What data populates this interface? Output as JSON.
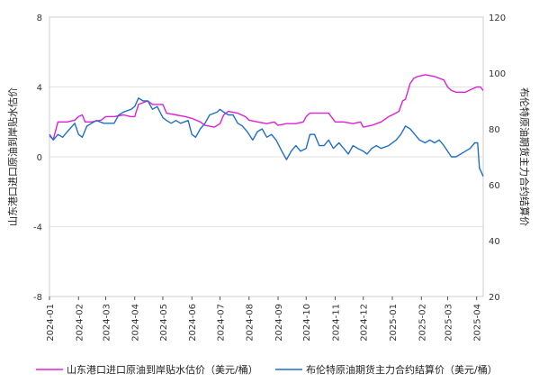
{
  "chart_data": {
    "type": "line",
    "x_labels": [
      "2024-01",
      "2024-02",
      "2024-03",
      "2024-04",
      "2024-05",
      "2024-06",
      "2024-07",
      "2024-08",
      "2024-09",
      "2024-10",
      "2024-11",
      "2024-12",
      "2025-01",
      "2025-02",
      "2025-03",
      "2025-04"
    ],
    "y_left": {
      "label": "山东港口进口原油到岸贴水估价",
      "ticks": [
        8,
        4,
        0,
        -4,
        -8
      ],
      "range": [
        -8,
        8
      ]
    },
    "y_right": {
      "label": "布伦特原油期货主力合约结算价",
      "ticks": [
        120,
        100,
        80,
        60,
        40,
        20
      ],
      "range": [
        20,
        120
      ]
    },
    "grid": "horizontal",
    "legend_position": "bottom",
    "series": [
      {
        "name": "山东港口进口原油到岸贴水估价（美元/桶）",
        "axis": "left",
        "color": "#e020d8",
        "points": [
          [
            "2024-01-01",
            1.2
          ],
          [
            "2024-01-05",
            1.0
          ],
          [
            "2024-01-10",
            2.0
          ],
          [
            "2024-01-20",
            2.0
          ],
          [
            "2024-01-28",
            2.1
          ],
          [
            "2024-02-01",
            2.3
          ],
          [
            "2024-02-05",
            2.4
          ],
          [
            "2024-02-08",
            2.0
          ],
          [
            "2024-02-15",
            2.0
          ],
          [
            "2024-02-25",
            2.1
          ],
          [
            "2024-03-01",
            2.3
          ],
          [
            "2024-03-10",
            2.3
          ],
          [
            "2024-03-20",
            2.4
          ],
          [
            "2024-03-28",
            2.3
          ],
          [
            "2024-04-01",
            2.3
          ],
          [
            "2024-04-05",
            3.0
          ],
          [
            "2024-04-10",
            3.1
          ],
          [
            "2024-04-15",
            3.2
          ],
          [
            "2024-04-20",
            3.0
          ],
          [
            "2024-04-25",
            3.0
          ],
          [
            "2024-05-01",
            3.0
          ],
          [
            "2024-05-05",
            2.5
          ],
          [
            "2024-05-15",
            2.4
          ],
          [
            "2024-05-25",
            2.3
          ],
          [
            "2024-06-01",
            2.2
          ],
          [
            "2024-06-10",
            2.0
          ],
          [
            "2024-06-15",
            1.8
          ],
          [
            "2024-06-25",
            1.7
          ],
          [
            "2024-07-01",
            1.9
          ],
          [
            "2024-07-05",
            2.4
          ],
          [
            "2024-07-10",
            2.6
          ],
          [
            "2024-07-20",
            2.5
          ],
          [
            "2024-07-28",
            2.3
          ],
          [
            "2024-08-01",
            2.1
          ],
          [
            "2024-08-10",
            2.0
          ],
          [
            "2024-08-20",
            1.9
          ],
          [
            "2024-08-28",
            2.0
          ],
          [
            "2024-09-01",
            1.8
          ],
          [
            "2024-09-10",
            1.9
          ],
          [
            "2024-09-20",
            1.9
          ],
          [
            "2024-09-28",
            2.0
          ],
          [
            "2024-10-01",
            2.3
          ],
          [
            "2024-10-05",
            2.5
          ],
          [
            "2024-10-15",
            2.5
          ],
          [
            "2024-10-25",
            2.5
          ],
          [
            "2024-11-01",
            2.0
          ],
          [
            "2024-11-10",
            2.0
          ],
          [
            "2024-11-20",
            1.9
          ],
          [
            "2024-11-28",
            2.0
          ],
          [
            "2024-12-01",
            1.7
          ],
          [
            "2024-12-10",
            1.8
          ],
          [
            "2024-12-20",
            2.0
          ],
          [
            "2024-12-28",
            2.3
          ],
          [
            "2025-01-01",
            2.4
          ],
          [
            "2025-01-08",
            2.6
          ],
          [
            "2025-01-12",
            3.2
          ],
          [
            "2025-01-15",
            3.3
          ],
          [
            "2025-01-20",
            4.2
          ],
          [
            "2025-01-24",
            4.5
          ],
          [
            "2025-01-28",
            4.6
          ],
          [
            "2025-02-05",
            4.7
          ],
          [
            "2025-02-15",
            4.6
          ],
          [
            "2025-02-25",
            4.4
          ],
          [
            "2025-03-01",
            4.0
          ],
          [
            "2025-03-05",
            3.8
          ],
          [
            "2025-03-10",
            3.7
          ],
          [
            "2025-03-20",
            3.7
          ],
          [
            "2025-03-28",
            3.9
          ],
          [
            "2025-04-01",
            4.0
          ],
          [
            "2025-04-05",
            4.0
          ],
          [
            "2025-04-08",
            3.8
          ]
        ]
      },
      {
        "name": "布伦特原油期货主力合约结算价（美元/桶）",
        "axis": "right",
        "color": "#1f6fc8",
        "points": [
          [
            "2024-01-01",
            78
          ],
          [
            "2024-01-05",
            76
          ],
          [
            "2024-01-10",
            78
          ],
          [
            "2024-01-15",
            77
          ],
          [
            "2024-01-20",
            79
          ],
          [
            "2024-01-28",
            82
          ],
          [
            "2024-02-01",
            78
          ],
          [
            "2024-02-05",
            77
          ],
          [
            "2024-02-10",
            81
          ],
          [
            "2024-02-15",
            82
          ],
          [
            "2024-02-20",
            83
          ],
          [
            "2024-02-28",
            82
          ],
          [
            "2024-03-05",
            82
          ],
          [
            "2024-03-10",
            82
          ],
          [
            "2024-03-15",
            85
          ],
          [
            "2024-03-20",
            86
          ],
          [
            "2024-03-28",
            87
          ],
          [
            "2024-04-01",
            88
          ],
          [
            "2024-04-05",
            91
          ],
          [
            "2024-04-10",
            90
          ],
          [
            "2024-04-15",
            90
          ],
          [
            "2024-04-20",
            87
          ],
          [
            "2024-04-25",
            88
          ],
          [
            "2024-05-01",
            84
          ],
          [
            "2024-05-05",
            83
          ],
          [
            "2024-05-10",
            82
          ],
          [
            "2024-05-15",
            83
          ],
          [
            "2024-05-20",
            82
          ],
          [
            "2024-05-28",
            83
          ],
          [
            "2024-06-01",
            78
          ],
          [
            "2024-06-05",
            77
          ],
          [
            "2024-06-10",
            80
          ],
          [
            "2024-06-15",
            82
          ],
          [
            "2024-06-20",
            85
          ],
          [
            "2024-06-28",
            86
          ],
          [
            "2024-07-01",
            87
          ],
          [
            "2024-07-05",
            86
          ],
          [
            "2024-07-10",
            85
          ],
          [
            "2024-07-15",
            85
          ],
          [
            "2024-07-20",
            82
          ],
          [
            "2024-07-25",
            81
          ],
          [
            "2024-07-30",
            79
          ],
          [
            "2024-08-05",
            76
          ],
          [
            "2024-08-10",
            79
          ],
          [
            "2024-08-15",
            80
          ],
          [
            "2024-08-20",
            77
          ],
          [
            "2024-08-25",
            78
          ],
          [
            "2024-08-30",
            76
          ],
          [
            "2024-09-05",
            72
          ],
          [
            "2024-09-10",
            69
          ],
          [
            "2024-09-15",
            72
          ],
          [
            "2024-09-20",
            74
          ],
          [
            "2024-09-25",
            72
          ],
          [
            "2024-10-01",
            73
          ],
          [
            "2024-10-05",
            78
          ],
          [
            "2024-10-10",
            78
          ],
          [
            "2024-10-15",
            74
          ],
          [
            "2024-10-20",
            74
          ],
          [
            "2024-10-25",
            76
          ],
          [
            "2024-10-30",
            73
          ],
          [
            "2024-11-05",
            75
          ],
          [
            "2024-11-10",
            73
          ],
          [
            "2024-11-15",
            71
          ],
          [
            "2024-11-20",
            74
          ],
          [
            "2024-11-25",
            73
          ],
          [
            "2024-12-01",
            72
          ],
          [
            "2024-12-05",
            71
          ],
          [
            "2024-12-10",
            73
          ],
          [
            "2024-12-15",
            74
          ],
          [
            "2024-12-20",
            73
          ],
          [
            "2024-12-28",
            74
          ],
          [
            "2025-01-05",
            76
          ],
          [
            "2025-01-10",
            78
          ],
          [
            "2025-01-15",
            81
          ],
          [
            "2025-01-20",
            80
          ],
          [
            "2025-01-25",
            78
          ],
          [
            "2025-01-30",
            76
          ],
          [
            "2025-02-05",
            75
          ],
          [
            "2025-02-10",
            76
          ],
          [
            "2025-02-15",
            75
          ],
          [
            "2025-02-20",
            76
          ],
          [
            "2025-02-25",
            74
          ],
          [
            "2025-03-01",
            72
          ],
          [
            "2025-03-05",
            70
          ],
          [
            "2025-03-10",
            70
          ],
          [
            "2025-03-15",
            71
          ],
          [
            "2025-03-20",
            72
          ],
          [
            "2025-03-25",
            73
          ],
          [
            "2025-03-30",
            75
          ],
          [
            "2025-04-02",
            75
          ],
          [
            "2025-04-04",
            66
          ],
          [
            "2025-04-08",
            63
          ]
        ]
      }
    ]
  }
}
